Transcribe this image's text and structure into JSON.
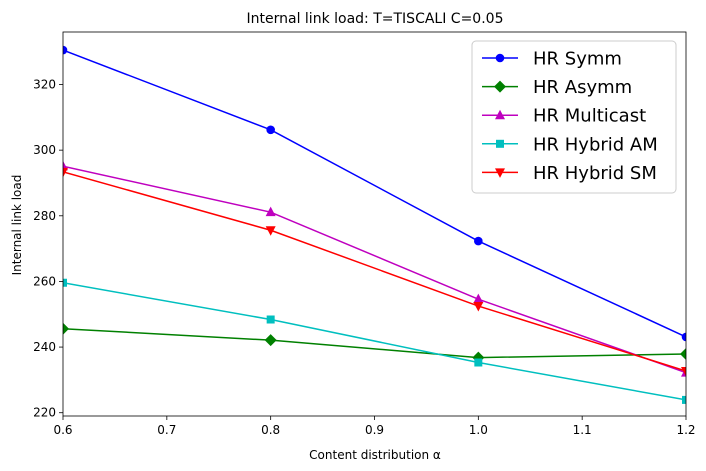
{
  "chart_data": {
    "type": "line",
    "title": "Internal link load: T=TISCALI C=0.05",
    "xlabel": "Content distribution α",
    "ylabel": "Internal link load",
    "x": [
      0.6,
      0.8,
      1.0,
      1.2
    ],
    "xlim": [
      0.6,
      1.2
    ],
    "ylim": [
      219,
      336
    ],
    "xticks": [
      "0.6",
      "0.7",
      "0.8",
      "0.9",
      "1.0",
      "1.1",
      "1.2"
    ],
    "yticks": [
      "220",
      "240",
      "260",
      "280",
      "300",
      "320"
    ],
    "legend_position": "top-right",
    "grid": false,
    "series": [
      {
        "name": "HR Symm",
        "color": "#0000ff",
        "marker": "circle",
        "values": [
          330.5,
          306.2,
          272.3,
          243.1
        ]
      },
      {
        "name": "HR Asymm",
        "color": "#008000",
        "marker": "diamond",
        "values": [
          245.6,
          242.1,
          236.8,
          237.9
        ]
      },
      {
        "name": "HR Multicast",
        "color": "#bf00bf",
        "marker": "triangle-up",
        "values": [
          295.1,
          281.1,
          254.6,
          232.2
        ]
      },
      {
        "name": "HR Hybrid AM",
        "color": "#00bfbf",
        "marker": "square",
        "values": [
          259.6,
          248.4,
          235.3,
          223.9
        ]
      },
      {
        "name": "HR Hybrid SM",
        "color": "#ff0000",
        "marker": "triangle-down",
        "values": [
          293.4,
          275.6,
          252.5,
          232.7
        ]
      }
    ]
  }
}
